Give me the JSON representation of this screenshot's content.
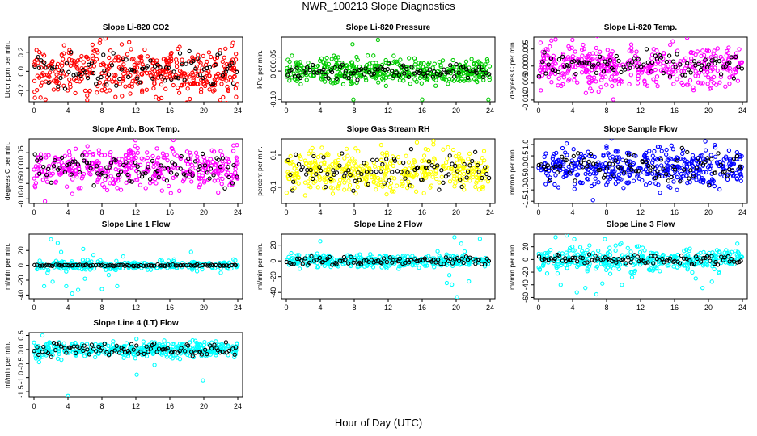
{
  "title": "NWR_100213  Slope Diagnostics",
  "xlabel": "Hour of Day (UTC)",
  "colors": {
    "overlay": "#000000"
  },
  "chart_data": [
    {
      "type": "scatter",
      "title": "Slope Li-820 CO2",
      "ylabel": "Licor ppm per min.",
      "color": "#ff0000",
      "xlim": [
        0,
        24
      ],
      "xticks": [
        0,
        4,
        8,
        12,
        16,
        20,
        24
      ],
      "ylim": [
        -0.32,
        0.36
      ],
      "yticks": [
        -0.2,
        0.0,
        0.2
      ],
      "yticklabels": [
        "-0.2",
        "0.0",
        "0.2"
      ],
      "spread": 0.13,
      "n": 420,
      "overlay_n": 90,
      "overlay_spread": 0.09,
      "outliers": [
        {
          "x": 7.8,
          "y": 0.33
        },
        {
          "x": 9.6,
          "y": -0.27
        },
        {
          "x": 23.8,
          "y": -0.27
        }
      ]
    },
    {
      "type": "scatter",
      "title": "Slope Li-820 Pressure",
      "ylabel": "kPa per min.",
      "color": "#00cc00",
      "xlim": [
        0,
        24
      ],
      "xticks": [
        0,
        4,
        8,
        12,
        16,
        20,
        24
      ],
      "ylim": [
        -0.108,
        0.12
      ],
      "yticks": [
        -0.1,
        0.0,
        0.05
      ],
      "yticklabels": [
        "-0.10",
        "0.00",
        "0.05"
      ],
      "spread": 0.022,
      "n": 420,
      "overlay_n": 90,
      "overlay_spread": 0.015,
      "outliers": [
        {
          "x": 7.9,
          "y": -0.1
        },
        {
          "x": 16.0,
          "y": -0.1
        },
        {
          "x": 23.8,
          "y": -0.1
        },
        {
          "x": 10.8,
          "y": 0.11
        },
        {
          "x": 7.8,
          "y": 0.095
        }
      ]
    },
    {
      "type": "scatter",
      "title": "Slope Li-820 Temp.",
      "ylabel": "degrees C per min.",
      "color": "#ff00ff",
      "xlim": [
        0,
        24
      ],
      "xticks": [
        0,
        4,
        8,
        12,
        16,
        20,
        24
      ],
      "ylim": [
        -0.0105,
        0.0085
      ],
      "yticks": [
        -0.01,
        -0.005,
        0.0,
        0.005
      ],
      "yticklabels": [
        "-0.010",
        "-0.005",
        "0.000",
        "0.005"
      ],
      "spread": 0.003,
      "n": 420,
      "overlay_n": 90,
      "overlay_spread": 0.002,
      "outliers": [
        {
          "x": 8.8,
          "y": -0.0098
        },
        {
          "x": 1.5,
          "y": 0.0075
        },
        {
          "x": 2.0,
          "y": 0.0078
        }
      ]
    },
    {
      "type": "scatter",
      "title": "Slope Amb. Box Temp.",
      "ylabel": "degrees C per min.",
      "color": "#ff00ff",
      "xlim": [
        0,
        24
      ],
      "xticks": [
        0,
        4,
        8,
        12,
        16,
        20,
        24
      ],
      "ylim": [
        -0.115,
        0.095
      ],
      "yticks": [
        -0.1,
        -0.05,
        0.0,
        0.05
      ],
      "yticklabels": [
        "-0.10",
        "-0.05",
        "0.00",
        "0.05"
      ],
      "spread": 0.032,
      "n": 420,
      "overlay_n": 90,
      "overlay_spread": 0.025,
      "outliers": [
        {
          "x": 1.3,
          "y": -0.108
        },
        {
          "x": 23.9,
          "y": 0.075
        }
      ]
    },
    {
      "type": "scatter",
      "title": "Slope Gas Stream RH",
      "ylabel": "percent per min.",
      "color": "#ffff00",
      "xlim": [
        0,
        24
      ],
      "xticks": [
        0,
        4,
        8,
        12,
        16,
        20,
        24
      ],
      "ylim": [
        -0.2,
        0.2
      ],
      "yticks": [
        -0.1,
        0.1
      ],
      "yticklabels": [
        "-0.1",
        "0.1"
      ],
      "spread": 0.065,
      "n": 420,
      "overlay_n": 90,
      "overlay_spread": 0.055,
      "outliers": []
    },
    {
      "type": "scatter",
      "title": "Slope Sample Flow",
      "ylabel": "ml/min per min.",
      "color": "#0000ff",
      "xlim": [
        0,
        24
      ],
      "xticks": [
        0,
        4,
        8,
        12,
        16,
        20,
        24
      ],
      "ylim": [
        -1.6,
        1.25
      ],
      "yticks": [
        -1.5,
        -1.0,
        -0.5,
        0.0,
        0.5,
        1.0
      ],
      "yticklabels": [
        "-1.5",
        "-1.0",
        "-0.5",
        "0.0",
        "0.5",
        "1.0"
      ],
      "spread": 0.42,
      "n": 420,
      "overlay_n": 90,
      "overlay_spread": 0.35,
      "outliers": [
        {
          "x": 6.4,
          "y": -1.45
        },
        {
          "x": 3.3,
          "y": 1.05
        }
      ]
    },
    {
      "type": "scatter",
      "title": "Slope Line 1 Flow",
      "ylabel": "ml/min per min.",
      "color": "#00ffff",
      "xlim": [
        0,
        24
      ],
      "xticks": [
        0,
        4,
        8,
        12,
        16,
        20,
        24
      ],
      "ylim": [
        -45,
        42
      ],
      "yticks": [
        -40,
        -20,
        0,
        20
      ],
      "yticklabels": [
        "-40",
        "-20",
        "0",
        "20"
      ],
      "spread": 3,
      "n": 300,
      "overlay_n": 90,
      "overlay_spread": 0.5,
      "outliers": [
        {
          "x": 1.6,
          "y": -10
        },
        {
          "x": 2.0,
          "y": 35
        },
        {
          "x": 2.8,
          "y": 30
        },
        {
          "x": 2.2,
          "y": -22
        },
        {
          "x": 3.8,
          "y": -28
        },
        {
          "x": 4.5,
          "y": -38
        },
        {
          "x": 5.2,
          "y": -33
        },
        {
          "x": 6.0,
          "y": -18
        },
        {
          "x": 7.0,
          "y": 14
        },
        {
          "x": 8.0,
          "y": -32
        },
        {
          "x": 8.8,
          "y": -13
        },
        {
          "x": 9.8,
          "y": -28
        },
        {
          "x": 10.5,
          "y": 12
        },
        {
          "x": 3.2,
          "y": 18
        },
        {
          "x": 18.5,
          "y": 18
        },
        {
          "x": 19.2,
          "y": -8
        },
        {
          "x": 16.5,
          "y": 8
        },
        {
          "x": 22.0,
          "y": -10
        },
        {
          "x": 23.5,
          "y": 8
        },
        {
          "x": 1.2,
          "y": -28
        },
        {
          "x": 5.8,
          "y": 22
        }
      ]
    },
    {
      "type": "scatter",
      "title": "Slope Line 2 Flow",
      "ylabel": "ml/min per min.",
      "color": "#00ffff",
      "xlim": [
        0,
        24
      ],
      "xticks": [
        0,
        4,
        8,
        12,
        16,
        20,
        24
      ],
      "ylim": [
        -48,
        34
      ],
      "yticks": [
        -40,
        -20,
        0,
        20
      ],
      "yticklabels": [
        "-40",
        "-20",
        "0",
        "20"
      ],
      "spread": 4,
      "n": 350,
      "overlay_n": 90,
      "overlay_spread": 3,
      "outliers": [
        {
          "x": 19.8,
          "y": 30
        },
        {
          "x": 20.1,
          "y": -46
        },
        {
          "x": 19.5,
          "y": -30
        },
        {
          "x": 18.9,
          "y": -28
        },
        {
          "x": 20.6,
          "y": 22
        },
        {
          "x": 4.0,
          "y": 25
        },
        {
          "x": 21.5,
          "y": -26
        },
        {
          "x": 22.8,
          "y": 28
        },
        {
          "x": 21.0,
          "y": 12
        },
        {
          "x": 19.2,
          "y": -18
        }
      ]
    },
    {
      "type": "scatter",
      "title": "Slope Line 3 Flow",
      "ylabel": "ml/min per min.",
      "color": "#00ffff",
      "xlim": [
        0,
        24
      ],
      "xticks": [
        0,
        4,
        8,
        12,
        16,
        20,
        24
      ],
      "ylim": [
        -62,
        40
      ],
      "yticks": [
        -60,
        -40,
        -20,
        0,
        20
      ],
      "yticklabels": [
        "-60",
        "-40",
        "-20",
        "0",
        "20"
      ],
      "spread": 9,
      "n": 380,
      "overlay_n": 90,
      "overlay_spread": 4,
      "outliers": [
        {
          "x": 2.0,
          "y": 35
        },
        {
          "x": 3.3,
          "y": 38
        },
        {
          "x": 4.2,
          "y": 32
        },
        {
          "x": 2.6,
          "y": -40
        },
        {
          "x": 4.5,
          "y": -52
        },
        {
          "x": 5.5,
          "y": -45
        },
        {
          "x": 6.8,
          "y": -55
        },
        {
          "x": 7.5,
          "y": -38
        },
        {
          "x": 7.8,
          "y": 32
        },
        {
          "x": 9.8,
          "y": -40
        },
        {
          "x": 11.0,
          "y": -28
        },
        {
          "x": 19.3,
          "y": -45
        },
        {
          "x": 20.4,
          "y": -35
        },
        {
          "x": 21.2,
          "y": -20
        },
        {
          "x": 23.4,
          "y": 25
        },
        {
          "x": 1.0,
          "y": -22
        },
        {
          "x": 10.5,
          "y": 18
        },
        {
          "x": 18.5,
          "y": -30
        }
      ]
    },
    {
      "type": "scatter",
      "title": "Slope Line 4 (LT) Flow",
      "ylabel": "ml/min per min.",
      "color": "#00ffff",
      "xlim": [
        0,
        24
      ],
      "xticks": [
        0,
        4,
        8,
        12,
        16,
        20,
        24
      ],
      "ylim": [
        -1.7,
        0.6
      ],
      "yticks": [
        -1.5,
        -1.0,
        -0.5,
        0.0,
        0.5
      ],
      "yticklabels": [
        "-1.5",
        "-1.0",
        "-0.5",
        "0.0",
        "0.5"
      ],
      "spread": 0.14,
      "n": 420,
      "overlay_n": 90,
      "overlay_spread": 0.12,
      "outliers": [
        {
          "x": 12.1,
          "y": -0.9
        },
        {
          "x": 19.9,
          "y": -1.1
        },
        {
          "x": 4.0,
          "y": -1.65
        },
        {
          "x": 14.2,
          "y": -0.55
        },
        {
          "x": 0.6,
          "y": -0.45
        },
        {
          "x": 1.0,
          "y": 0.5
        }
      ]
    }
  ]
}
